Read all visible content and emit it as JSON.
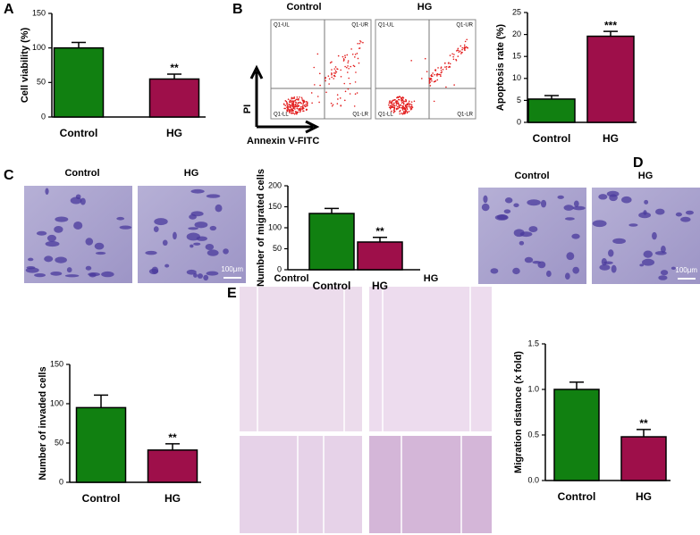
{
  "figure": {
    "panels": [
      "A",
      "B",
      "C",
      "D",
      "E"
    ],
    "flow": {
      "titles": [
        "Control",
        "HG"
      ],
      "quadrants": [
        "Q1-UL",
        "Q1-UR",
        "Q1-LL",
        "Q1-LR"
      ],
      "y_label": "PI",
      "x_label": "Annexin V-FITC"
    },
    "micro_c": {
      "titles": [
        "Control",
        "HG"
      ],
      "scale": "100μm"
    },
    "micro_d": {
      "titles": [
        "Control",
        "HG"
      ],
      "scale": "100μm"
    },
    "scratch_e": {
      "titles": [
        "Control",
        "HG"
      ]
    }
  },
  "chart_data": [
    {
      "type": "bar",
      "y_label": "Cell viability (%)",
      "categories": [
        "Control",
        "HG"
      ],
      "values": [
        100,
        55
      ],
      "errors": [
        8,
        7
      ],
      "colors": [
        "#118011",
        "#9e0f4a"
      ],
      "annotation": "**",
      "ylim": [
        0,
        150
      ],
      "yticks": [
        0,
        50,
        100,
        150
      ]
    },
    {
      "type": "bar",
      "y_label": "Apoptosis rate (%)",
      "categories": [
        "Control",
        "HG"
      ],
      "values": [
        5.3,
        19.6
      ],
      "errors": [
        0.8,
        1.1
      ],
      "colors": [
        "#118011",
        "#9e0f4a"
      ],
      "annotation": "***",
      "ylim": [
        0,
        25
      ],
      "yticks": [
        0,
        5,
        10,
        15,
        20,
        25
      ]
    },
    {
      "type": "bar",
      "y_label": "Number of migrated cells",
      "categories": [
        "Control",
        "HG"
      ],
      "values": [
        134,
        66
      ],
      "errors": [
        12,
        11
      ],
      "colors": [
        "#118011",
        "#9e0f4a"
      ],
      "annotation": "**",
      "ylim": [
        0,
        200
      ],
      "yticks": [
        0,
        50,
        100,
        150,
        200
      ]
    },
    {
      "type": "bar",
      "y_label": "Number of invaded cells",
      "categories": [
        "Control",
        "HG"
      ],
      "values": [
        95,
        41
      ],
      "errors": [
        16,
        8
      ],
      "colors": [
        "#118011",
        "#9e0f4a"
      ],
      "annotation": "**",
      "ylim": [
        0,
        150
      ],
      "yticks": [
        0,
        50,
        100,
        150
      ]
    },
    {
      "type": "bar",
      "y_label": "Migration distance (x fold)",
      "categories": [
        "Control",
        "HG"
      ],
      "values": [
        1.0,
        0.48
      ],
      "errors": [
        0.08,
        0.08
      ],
      "colors": [
        "#118011",
        "#9e0f4a"
      ],
      "annotation": "**",
      "ylim": [
        0,
        1.5
      ],
      "yticks": [
        {
          "value": 0,
          "label": "0.0"
        },
        0.5,
        {
          "value": 1,
          "label": "1.0"
        },
        1.5
      ]
    }
  ]
}
